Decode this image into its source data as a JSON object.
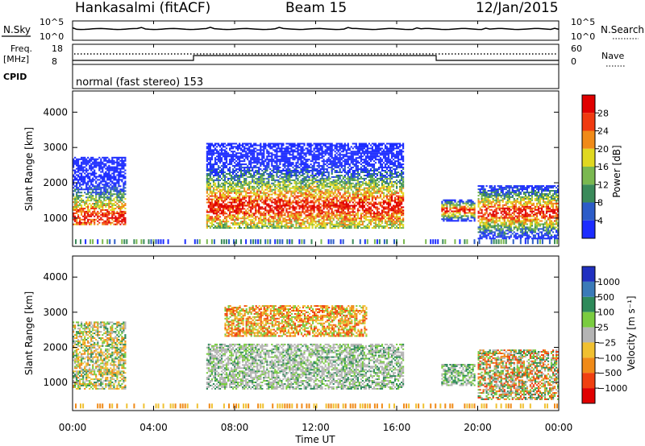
{
  "header": {
    "station": "Hankasalmi (fitACF)",
    "beam": "Beam 15",
    "date": "12/Jan/2015"
  },
  "strips": {
    "nsky_label": "N.Sky",
    "nsearch_label": "N.Search",
    "freq_label": "Freq.",
    "freq_unit": "[MHz]",
    "nave_label": "Nave",
    "cpid_label": "CPID",
    "cpid_text": "normal (fast stereo) 153",
    "noise_ticks": [
      "10^5",
      "10^0"
    ],
    "freq_ticks": [
      "18",
      "8"
    ],
    "nave_ticks": [
      "60",
      "0"
    ]
  },
  "chart_data": [
    {
      "type": "heatmap",
      "name": "power",
      "ylabel": "Slant Range [km]",
      "y_ticks": [
        "1000",
        "2000",
        "3000",
        "4000"
      ],
      "ylim": [
        200,
        4600
      ],
      "colorbar_label": "Power [dB]",
      "colorbar_ticks": [
        "4",
        "8",
        "12",
        "16",
        "20",
        "24",
        "28"
      ],
      "colorbar_colors": [
        "#1c2cff",
        "#2c5cc8",
        "#3a8a5a",
        "#7ab850",
        "#e0d820",
        "#f08a18",
        "#f03a10",
        "#e00000"
      ],
      "ranges": [
        {
          "t0": 0.0,
          "t1": 2.6,
          "r0": 800,
          "r1": 2700,
          "peak": 1000
        },
        {
          "t0": 6.6,
          "t1": 16.3,
          "r0": 700,
          "r1": 3100,
          "peak": 1300
        },
        {
          "t0": 18.2,
          "t1": 19.8,
          "r0": 900,
          "r1": 1500,
          "peak": 1200
        },
        {
          "t0": 20.0,
          "t1": 24.0,
          "r0": 400,
          "r1": 1900,
          "peak": 1150
        }
      ]
    },
    {
      "type": "heatmap",
      "name": "velocity",
      "ylabel": "Slant Range [km]",
      "xlabel": "Time UT",
      "x_ticks": [
        "00:00",
        "04:00",
        "08:00",
        "12:00",
        "16:00",
        "20:00",
        "00:00"
      ],
      "y_ticks": [
        "1000",
        "2000",
        "3000",
        "4000"
      ],
      "ylim": [
        200,
        4600
      ],
      "colorbar_label": "Velocity [m s⁻¹]",
      "colorbar_ticks": [
        "1000",
        "500",
        "100",
        "25",
        "−25",
        "−100",
        "−500",
        "−1000"
      ],
      "colorbar_colors": [
        "#2030c0",
        "#3a7ab8",
        "#2e8a5a",
        "#7acc40",
        "#b4b4b4",
        "#f0c030",
        "#f08a18",
        "#f04010",
        "#e00000"
      ]
    }
  ]
}
